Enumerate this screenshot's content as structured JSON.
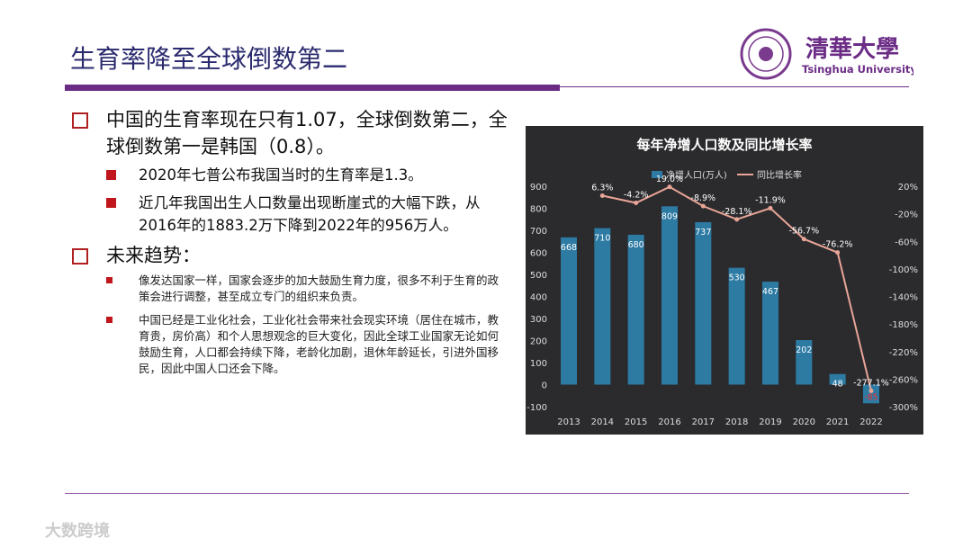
{
  "slide": {
    "title": "生育率降至全球倒数第二",
    "logo": {
      "name": "清華大學",
      "english": "Tsinghua University"
    },
    "bullets": [
      {
        "text": "中国的生育率现在只有1.07，全球倒数第二，全球倒数第一是韩国（0.8）。",
        "items": [
          "2020年七普公布我国当时的生育率是1.3。",
          "近几年我国出生人口数量出现断崖式的大幅下跌，从2016年的1883.2万下降到2022年的956万人。"
        ]
      },
      {
        "text": "未来趋势：",
        "items": [
          "像发达国家一样，国家会逐步的加大鼓励生育力度，很多不利于生育的政策会进行调整，甚至成立专门的组织来负责。",
          "中国已经是工业化社会，工业化社会带来社会现实环境（居住在城市，教育贵，房价高）和个人思想观念的巨大变化，因此全球工业国家无论如何鼓励生育，人口都会持续下降，老龄化加剧，退休年龄延长，引进外国移民，因此中国人口还会下降。"
        ]
      }
    ],
    "watermark": "大数跨境"
  },
  "chart_data": {
    "type": "bar-line",
    "title": "每年净增人口数及同比增长率",
    "categories": [
      "2013",
      "2014",
      "2015",
      "2016",
      "2017",
      "2018",
      "2019",
      "2020",
      "2021",
      "2022"
    ],
    "series": [
      {
        "name": "净增人口(万人)",
        "color": "#2d7aa3",
        "type": "bar",
        "values": [
          668,
          710,
          680,
          809,
          737,
          530,
          467,
          202,
          48,
          -85
        ]
      },
      {
        "name": "同比增长率",
        "color": "#e9a596",
        "type": "line",
        "axis": "y2",
        "values": [
          null,
          6.3,
          -4.2,
          19.0,
          -8.9,
          -28.1,
          -11.9,
          -56.7,
          -76.2,
          -277.1
        ],
        "value_labels": [
          null,
          "6.3%",
          "-4.2%",
          "19.0%",
          "-8.9%",
          "-28.1%",
          "-11.9%",
          "-56.7%",
          "-76.2%",
          "-277.1%"
        ]
      }
    ],
    "ylim": [
      -100,
      900
    ],
    "yticks": [
      -100,
      0,
      100,
      200,
      300,
      400,
      500,
      600,
      700,
      800,
      900
    ],
    "y2lim": [
      -300,
      20
    ],
    "y2ticks": [
      {
        "value": 20,
        "label": "20%"
      },
      {
        "value": -20,
        "label": "-20%"
      },
      {
        "value": -60,
        "label": "-60%"
      },
      {
        "value": -100,
        "label": "-100%"
      },
      {
        "value": -140,
        "label": "-140%"
      },
      {
        "value": -180,
        "label": "-180%"
      },
      {
        "value": -220,
        "label": "-220%"
      },
      {
        "value": -260,
        "label": "-260%"
      },
      {
        "value": -300,
        "label": "-300%"
      }
    ]
  }
}
